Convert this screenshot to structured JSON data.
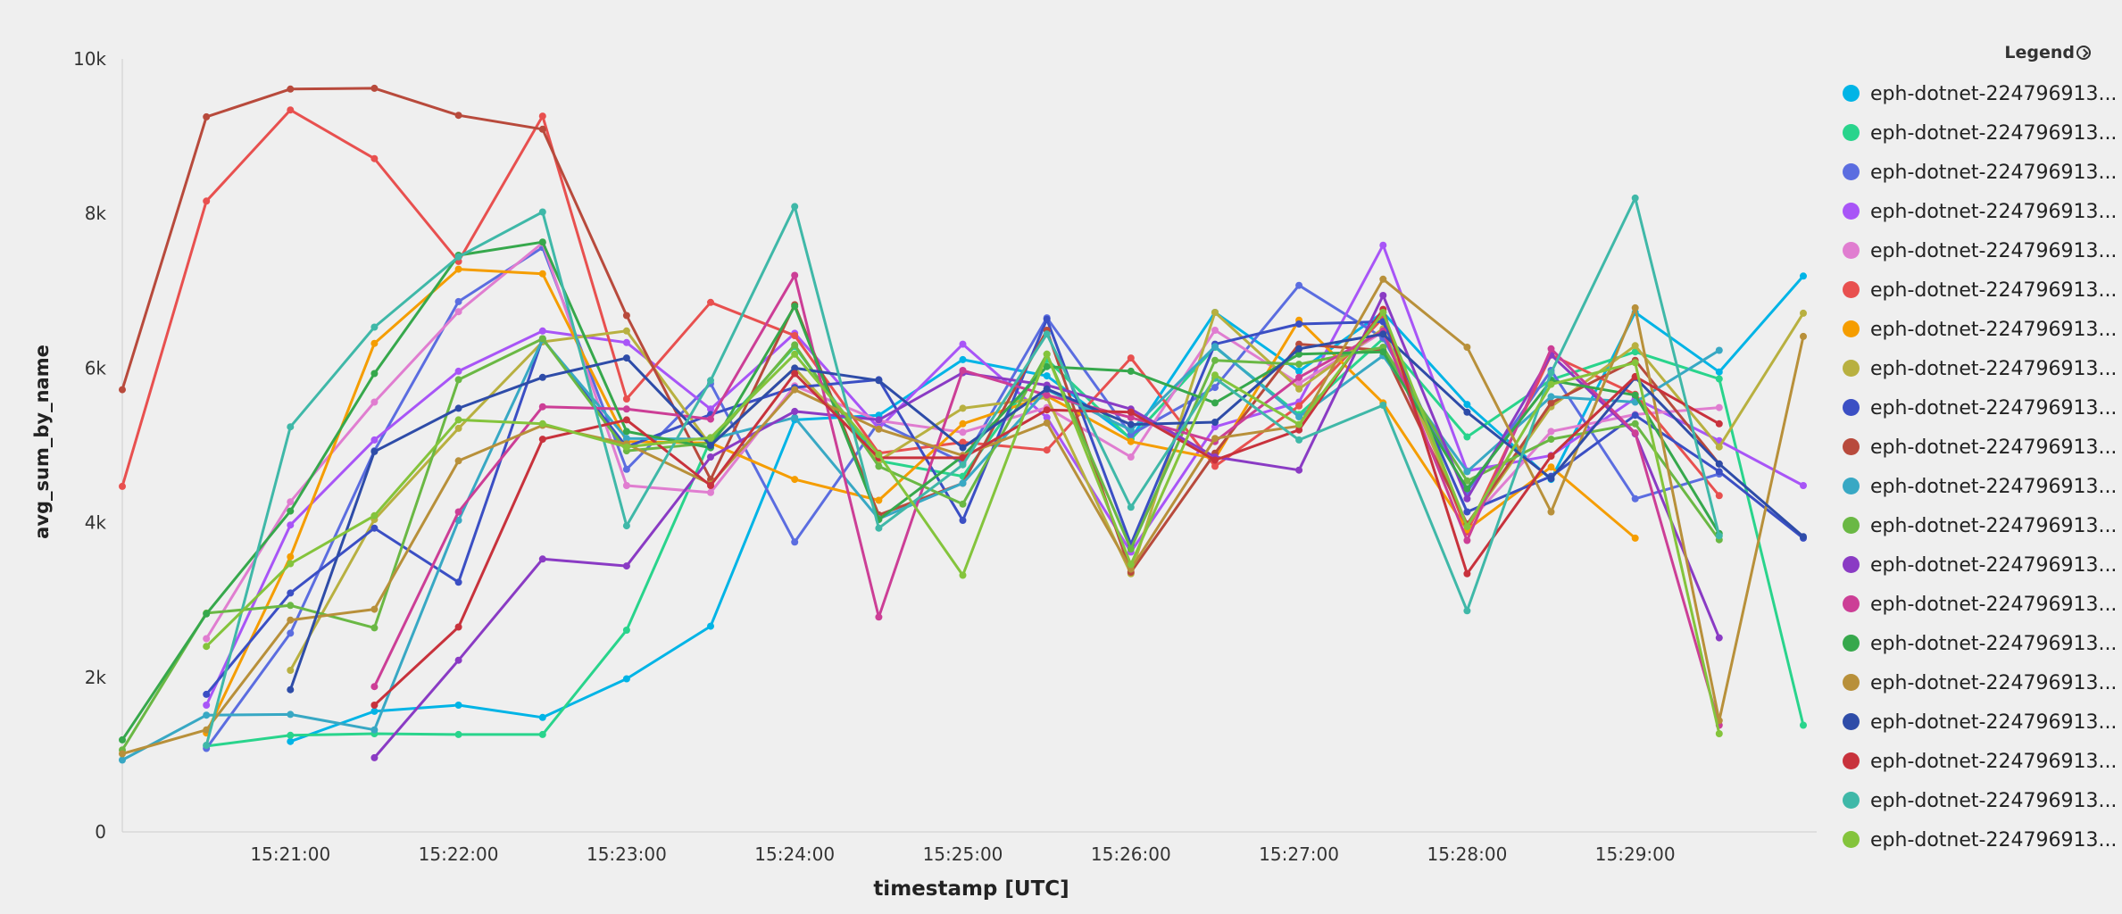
{
  "chart_data": {
    "type": "line",
    "xlabel": "timestamp [UTC]",
    "ylabel": "avg_sum_by_name",
    "ylim": [
      0,
      10000
    ],
    "yticks": [
      0,
      2000,
      4000,
      6000,
      8000,
      10000
    ],
    "ytick_labels": [
      "0",
      "2k",
      "4k",
      "6k",
      "8k",
      "10k"
    ],
    "x": [
      "15:20:00",
      "15:20:30",
      "15:21:00",
      "15:21:30",
      "15:22:00",
      "15:22:30",
      "15:23:00",
      "15:23:30",
      "15:24:00",
      "15:24:30",
      "15:25:00",
      "15:25:30",
      "15:26:00",
      "15:26:30",
      "15:27:00",
      "15:27:30",
      "15:28:00",
      "15:28:30",
      "15:29:00",
      "15:29:30",
      "15:30:00"
    ],
    "xticks": [
      "15:21:00",
      "15:22:00",
      "15:23:00",
      "15:24:00",
      "15:25:00",
      "15:26:00",
      "15:27:00",
      "15:28:00",
      "15:29:00"
    ],
    "grid": false,
    "legend_position": "right",
    "series": [
      {
        "name": "eph-dotnet-224796913...",
        "color": "#00b4e6",
        "values": [
          null,
          null,
          1170,
          1560,
          1640,
          1480,
          1980,
          2660,
          5330,
          5390,
          6110,
          5900,
          5090,
          6720,
          5960,
          6720,
          5530,
          4560,
          6720,
          5950,
          7190
        ]
      },
      {
        "name": "eph-dotnet-224796913...",
        "color": "#29d48c",
        "values": [
          null,
          1110,
          1250,
          1270,
          1260,
          1260,
          2610,
          5070,
          6280,
          4800,
          4600,
          6110,
          5080,
          6270,
          5400,
          6380,
          5110,
          5850,
          6210,
          5860,
          1380
        ]
      },
      {
        "name": "eph-dotnet-224796913...",
        "color": "#5b6de0",
        "values": [
          null,
          1080,
          2570,
          4930,
          6860,
          7560,
          4690,
          5800,
          3750,
          5300,
          4780,
          6650,
          5140,
          5750,
          7070,
          6390,
          4400,
          5970,
          4310,
          4630,
          null
        ]
      },
      {
        "name": "eph-dotnet-224796913...",
        "color": "#a855f7",
        "values": [
          null,
          1640,
          3970,
          5070,
          5960,
          6480,
          6330,
          5470,
          6450,
          5220,
          6310,
          5360,
          3620,
          5240,
          5560,
          7590,
          4670,
          4870,
          5610,
          5060,
          4480
        ]
      },
      {
        "name": "eph-dotnet-224796913...",
        "color": "#e07dd0",
        "values": [
          null,
          2500,
          4270,
          5560,
          6730,
          7620,
          4480,
          4390,
          5770,
          5320,
          5170,
          5490,
          4850,
          6490,
          5800,
          6470,
          3980,
          5180,
          5400,
          5490,
          null
        ]
      },
      {
        "name": "eph-dotnet-224796913...",
        "color": "#e8504f",
        "values": [
          4470,
          8160,
          9340,
          8710,
          7380,
          9260,
          5600,
          6850,
          6420,
          4900,
          5040,
          4940,
          6130,
          4730,
          5510,
          6650,
          3880,
          6170,
          5660,
          4350,
          null
        ]
      },
      {
        "name": "eph-dotnet-224796913...",
        "color": "#f59d00",
        "values": [
          null,
          1280,
          3560,
          6320,
          7280,
          7220,
          5050,
          5030,
          4560,
          4290,
          5280,
          5640,
          5050,
          4830,
          6620,
          5550,
          3910,
          4720,
          3800,
          null,
          null
        ]
      },
      {
        "name": "eph-dotnet-224796913...",
        "color": "#b8b040",
        "values": [
          null,
          null,
          2090,
          4040,
          5220,
          6340,
          6480,
          5000,
          6000,
          4800,
          5480,
          5620,
          3340,
          6720,
          5730,
          6510,
          3960,
          5500,
          6290,
          4980,
          6710
        ]
      },
      {
        "name": "eph-dotnet-224796913...",
        "color": "#3b4fc4",
        "values": [
          null,
          1780,
          3090,
          3930,
          3230,
          6380,
          4980,
          5400,
          5750,
          5850,
          4030,
          6630,
          3720,
          6310,
          6570,
          6600,
          4140,
          4600,
          5390,
          4660,
          3800
        ]
      },
      {
        "name": "eph-dotnet-224796913...",
        "color": "#b84a3c",
        "values": [
          5720,
          9250,
          9610,
          9620,
          9270,
          9090,
          6680,
          4560,
          6820,
          4100,
          4510,
          6490,
          3360,
          4900,
          6310,
          6230,
          3980,
          5550,
          6100,
          4760,
          null
        ]
      },
      {
        "name": "eph-dotnet-224796913...",
        "color": "#38a8c4",
        "values": [
          930,
          1510,
          1520,
          1320,
          4030,
          6370,
          5090,
          5080,
          5360,
          4050,
          4510,
          5720,
          5200,
          6280,
          5370,
          6160,
          4660,
          5630,
          5560,
          6230,
          null
        ]
      },
      {
        "name": "eph-dotnet-224796913...",
        "color": "#6ab844",
        "values": [
          1060,
          2830,
          2930,
          2640,
          5850,
          6380,
          4930,
          5030,
          6300,
          4730,
          4240,
          6180,
          3660,
          6100,
          6050,
          6270,
          4540,
          5080,
          5280,
          3780,
          null
        ]
      },
      {
        "name": "eph-dotnet-224796913...",
        "color": "#8a3bc4",
        "values": [
          null,
          null,
          null,
          960,
          2220,
          3530,
          3440,
          4850,
          5440,
          5330,
          5940,
          5780,
          5470,
          4850,
          4680,
          6940,
          4310,
          6170,
          5150,
          2510,
          null
        ]
      },
      {
        "name": "eph-dotnet-224796913...",
        "color": "#cc3e96",
        "values": [
          null,
          null,
          null,
          1880,
          4140,
          5500,
          5470,
          5340,
          7200,
          2780,
          5970,
          5650,
          5360,
          5050,
          5880,
          6480,
          3770,
          6250,
          5160,
          1380,
          null
        ]
      },
      {
        "name": "eph-dotnet-224796913...",
        "color": "#36a84c",
        "values": [
          1190,
          2820,
          4150,
          5930,
          7460,
          7630,
          5180,
          4970,
          6800,
          4040,
          4860,
          6020,
          5960,
          5550,
          6180,
          6210,
          4440,
          5840,
          5650,
          3860,
          null
        ]
      },
      {
        "name": "eph-dotnet-224796913...",
        "color": "#b8903a",
        "values": [
          1010,
          1320,
          2740,
          2880,
          4800,
          5260,
          5020,
          4500,
          5720,
          5210,
          4870,
          5290,
          3400,
          5090,
          5250,
          7150,
          6270,
          4140,
          6780,
          1440,
          6410
        ]
      },
      {
        "name": "eph-dotnet-224796913...",
        "color": "#2e4ca8",
        "values": [
          null,
          null,
          1840,
          4920,
          5480,
          5880,
          6130,
          5000,
          6000,
          5840,
          4970,
          5730,
          5270,
          5300,
          6250,
          6440,
          5430,
          4570,
          5880,
          4760,
          3820
        ]
      },
      {
        "name": "eph-dotnet-224796913...",
        "color": "#c8323c",
        "values": [
          null,
          null,
          null,
          1640,
          2650,
          5080,
          5330,
          4480,
          5930,
          4840,
          4840,
          5460,
          5430,
          4810,
          5200,
          6760,
          3340,
          4860,
          5890,
          5280,
          null
        ]
      },
      {
        "name": "eph-dotnet-224796913...",
        "color": "#3fb8a8",
        "values": [
          null,
          1120,
          5240,
          6530,
          7440,
          8020,
          3960,
          5840,
          8090,
          3930,
          4750,
          6440,
          4200,
          5870,
          5070,
          5520,
          2860,
          5940,
          8200,
          3830,
          null
        ]
      },
      {
        "name": "eph-dotnet-224796913...",
        "color": "#84c43c",
        "values": [
          null,
          2400,
          3470,
          4090,
          5330,
          5280,
          4980,
          5100,
          6180,
          4880,
          3320,
          6180,
          3460,
          5910,
          5270,
          6720,
          3950,
          5790,
          6070,
          1270,
          null
        ]
      }
    ]
  }
}
